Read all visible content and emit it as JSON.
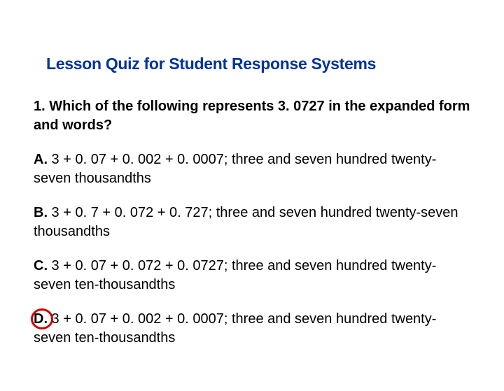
{
  "title": "Lesson Quiz for Student Response Systems",
  "question": {
    "number": "1.",
    "text": "Which of the following represents 3. 0727 in the expanded form and words?"
  },
  "options": [
    {
      "label": "A.",
      "text": " 3 + 0. 07 + 0. 002 + 0. 0007; three and seven hundred twenty-seven thousandths",
      "circled": false
    },
    {
      "label": "B.",
      "text": " 3 + 0. 7 + 0. 072 + 0. 727; three and seven hundred twenty-seven thousandths",
      "circled": false
    },
    {
      "label": "C.",
      "text": " 3 + 0. 07 + 0. 072 + 0. 0727; three and seven hundred twenty-seven ten-thousandths",
      "circled": false
    },
    {
      "label": "D.",
      "text": " 3 + 0. 07 + 0. 002 + 0. 0007; three and seven hundred twenty-seven ten-thousandths",
      "circled": true
    }
  ],
  "colors": {
    "title": "#003399",
    "text": "#000000",
    "circle": "#cc0000",
    "background": "#ffffff"
  },
  "typography": {
    "title_fontsize": 23,
    "body_fontsize": 20,
    "title_weight": "900",
    "label_weight": "bold"
  }
}
